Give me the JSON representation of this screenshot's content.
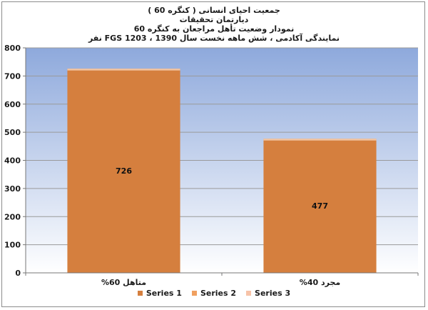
{
  "chart_data": {
    "type": "bar",
    "title_lines": [
      "جمعیت احیای انسانی ( کنگره 60 )",
      "دیارتمان تحقیقات",
      "نمودار وضعیت تأهل مراجعان به کنگره 60",
      "نمایندگی آکادمی ، شش ماهه نخست سال 1390 ، FGS 1203 نفر"
    ],
    "categories": [
      "متاهل  60%",
      "مجرد 40%"
    ],
    "series": [
      {
        "name": "Series 1",
        "values": [
          726,
          477
        ],
        "color": "#d57f3e"
      },
      {
        "name": "Series 2",
        "values": [
          0,
          0
        ],
        "color": "#f0a060"
      },
      {
        "name": "Series 3",
        "values": [
          0,
          0
        ],
        "color": "#f7c3a8"
      }
    ],
    "data_labels": [
      "726",
      "477"
    ],
    "ylim": [
      0,
      800
    ],
    "yticks": [
      0,
      100,
      200,
      300,
      400,
      500,
      600,
      700,
      800
    ],
    "grid": true,
    "legend_position": "bottom",
    "colors": {
      "plot_top": "#8ea9dc",
      "plot_bottom": "#ffffff",
      "bar": "#d57f3e",
      "bar_top": "#f2c6a5"
    }
  }
}
